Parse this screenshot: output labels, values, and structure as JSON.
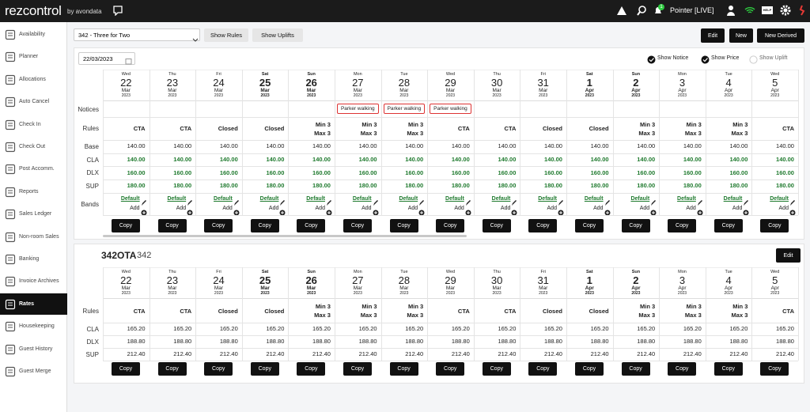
{
  "topbar": {
    "logo": "rezcontrol",
    "by": "by avondata",
    "user": "Pointer [LIVE]",
    "help": "HELP",
    "badge": "1"
  },
  "sidebar": {
    "items": [
      "Availability",
      "Planner",
      "Allocations",
      "Auto Cancel",
      "Check In",
      "Check Out",
      "Post Accomm.",
      "Reports",
      "Sales Ledger",
      "Non-room Sales",
      "Banking",
      "Invoice Archives",
      "Rates",
      "Housekeeping",
      "Guest History",
      "Guest Merge"
    ],
    "active": 12
  },
  "toolbar": {
    "rate_plan": "342 - Three for Two",
    "show_rules": "Show Rules",
    "show_uplifts": "Show Uplifts",
    "edit": "Edit",
    "new": "New",
    "new_derived": "New Derived",
    "date": "22/03/2023",
    "options": [
      {
        "label": "Show Notice",
        "checked": true
      },
      {
        "label": "Show Price",
        "checked": true
      },
      {
        "label": "Show Uplift",
        "checked": false
      }
    ]
  },
  "days": [
    {
      "dow": "Wed",
      "day": "22",
      "month": "Mar",
      "year": "2023"
    },
    {
      "dow": "Thu",
      "day": "23",
      "month": "Mar",
      "year": "2023"
    },
    {
      "dow": "Fri",
      "day": "24",
      "month": "Mar",
      "year": "2023"
    },
    {
      "dow": "Sat",
      "day": "25",
      "month": "Mar",
      "year": "2023"
    },
    {
      "dow": "Sun",
      "day": "26",
      "month": "Mar",
      "year": "2023"
    },
    {
      "dow": "Mon",
      "day": "27",
      "month": "Mar",
      "year": "2023"
    },
    {
      "dow": "Tue",
      "day": "28",
      "month": "Mar",
      "year": "2023"
    },
    {
      "dow": "Wed",
      "day": "29",
      "month": "Mar",
      "year": "2023"
    },
    {
      "dow": "Thu",
      "day": "30",
      "month": "Mar",
      "year": "2023"
    },
    {
      "dow": "Fri",
      "day": "31",
      "month": "Mar",
      "year": "2023"
    },
    {
      "dow": "Sat",
      "day": "1",
      "month": "Apr",
      "year": "2023"
    },
    {
      "dow": "Sun",
      "day": "2",
      "month": "Apr",
      "year": "2023"
    },
    {
      "dow": "Mon",
      "day": "3",
      "month": "Apr",
      "year": "2023"
    },
    {
      "dow": "Tue",
      "day": "4",
      "month": "Apr",
      "year": "2023"
    },
    {
      "dow": "Wed",
      "day": "5",
      "month": "Apr",
      "year": "2023"
    }
  ],
  "grids": [
    {
      "notices": {
        "label": "Notices",
        "values": [
          null,
          null,
          null,
          null,
          null,
          "Parker walking",
          "Parker walking",
          "Parker walking",
          null,
          null,
          null,
          null,
          null,
          null,
          null
        ]
      },
      "rules": {
        "label": "Rules",
        "values": [
          [
            "CTA"
          ],
          [
            "CTA"
          ],
          [
            "Closed"
          ],
          [
            "Closed"
          ],
          [
            "Min 3",
            "Max 3"
          ],
          [
            "Min 3",
            "Max 3"
          ],
          [
            "Min 3",
            "Max 3"
          ],
          [
            "CTA"
          ],
          [
            "CTA"
          ],
          [
            "Closed"
          ],
          [
            "Closed"
          ],
          [
            "Min 3",
            "Max 3"
          ],
          [
            "Min 3",
            "Max 3"
          ],
          [
            "Min 3",
            "Max 3"
          ],
          [
            "CTA"
          ]
        ]
      },
      "rates": [
        {
          "label": "Base",
          "values": [
            "140.00",
            "140.00",
            "140.00",
            "140.00",
            "140.00",
            "140.00",
            "140.00",
            "140.00",
            "140.00",
            "140.00",
            "140.00",
            "140.00",
            "140.00",
            "140.00",
            "140.00"
          ]
        },
        {
          "label": "CLA",
          "values": [
            "140.00",
            "140.00",
            "140.00",
            "140.00",
            "140.00",
            "140.00",
            "140.00",
            "140.00",
            "140.00",
            "140.00",
            "140.00",
            "140.00",
            "140.00",
            "140.00",
            "140.00"
          ]
        },
        {
          "label": "DLX",
          "values": [
            "160.00",
            "160.00",
            "160.00",
            "160.00",
            "160.00",
            "160.00",
            "160.00",
            "160.00",
            "160.00",
            "160.00",
            "160.00",
            "160.00",
            "160.00",
            "160.00",
            "160.00"
          ]
        },
        {
          "label": "SUP",
          "values": [
            "180.00",
            "180.00",
            "180.00",
            "180.00",
            "180.00",
            "180.00",
            "180.00",
            "180.00",
            "180.00",
            "180.00",
            "180.00",
            "180.00",
            "180.00",
            "180.00",
            "180.00"
          ]
        }
      ],
      "bands": {
        "label": "Bands",
        "default": "Default",
        "add": "Add"
      },
      "copy": "Copy"
    },
    {
      "title": "342OTA",
      "subtitle": "342",
      "edit": "Edit",
      "rules": {
        "label": "Rules",
        "values": [
          [
            "CTA"
          ],
          [
            "CTA"
          ],
          [
            "Closed"
          ],
          [
            "Closed"
          ],
          [
            "Min 3",
            "Max 3"
          ],
          [
            "Min 3",
            "Max 3"
          ],
          [
            "Min 3",
            "Max 3"
          ],
          [
            "CTA"
          ],
          [
            "CTA"
          ],
          [
            "Closed"
          ],
          [
            "Closed"
          ],
          [
            "Min 3",
            "Max 3"
          ],
          [
            "Min 3",
            "Max 3"
          ],
          [
            "Min 3",
            "Max 3"
          ],
          [
            "CTA"
          ]
        ]
      },
      "rates": [
        {
          "label": "CLA",
          "values": [
            "165.20",
            "165.20",
            "165.20",
            "165.20",
            "165.20",
            "165.20",
            "165.20",
            "165.20",
            "165.20",
            "165.20",
            "165.20",
            "165.20",
            "165.20",
            "165.20",
            "165.20"
          ]
        },
        {
          "label": "DLX",
          "values": [
            "188.80",
            "188.80",
            "188.80",
            "188.80",
            "188.80",
            "188.80",
            "188.80",
            "188.80",
            "188.80",
            "188.80",
            "188.80",
            "188.80",
            "188.80",
            "188.80",
            "188.80"
          ]
        },
        {
          "label": "SUP",
          "values": [
            "212.40",
            "212.40",
            "212.40",
            "212.40",
            "212.40",
            "212.40",
            "212.40",
            "212.40",
            "212.40",
            "212.40",
            "212.40",
            "212.40",
            "212.40",
            "212.40",
            "212.40"
          ]
        }
      ],
      "copy": "Copy"
    }
  ]
}
